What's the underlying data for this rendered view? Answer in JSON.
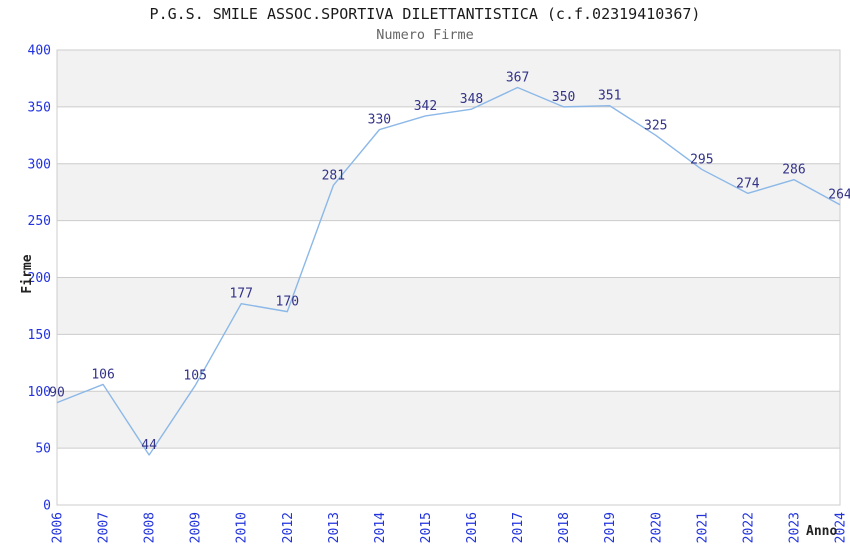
{
  "chart_data": {
    "type": "line",
    "title": "P.G.S. SMILE ASSOC.SPORTIVA DILETTANTISTICA (c.f.02319410367)",
    "subtitle": "Numero Firme",
    "xlabel": "Anno",
    "ylabel": "Firme",
    "categories": [
      "2006",
      "2007",
      "2008",
      "2009",
      "2010",
      "2012",
      "2013",
      "2014",
      "2015",
      "2016",
      "2017",
      "2018",
      "2019",
      "2020",
      "2021",
      "2022",
      "2023",
      "2024"
    ],
    "values": [
      90,
      106,
      44,
      105,
      177,
      170,
      281,
      330,
      342,
      348,
      367,
      350,
      351,
      325,
      295,
      274,
      286,
      264
    ],
    "ylim": [
      0,
      400
    ],
    "ytick_step": 50,
    "yticks": [
      400,
      350,
      300,
      250,
      200,
      150,
      100,
      50,
      0
    ],
    "grid": "alternating horizontal bands with gray gridlines",
    "legend_position": "none",
    "data_labels_visible": true,
    "markers": "none",
    "colors": {
      "line": "#8cb8e8",
      "data_label": "#333388",
      "tick_label": "#2233dd",
      "band_alt": "#f2f2f2",
      "band_main": "#ffffff",
      "border": "#cccccc",
      "title": "#1a1a1a",
      "subtitle": "#666666",
      "axis_title": "#222222"
    }
  }
}
